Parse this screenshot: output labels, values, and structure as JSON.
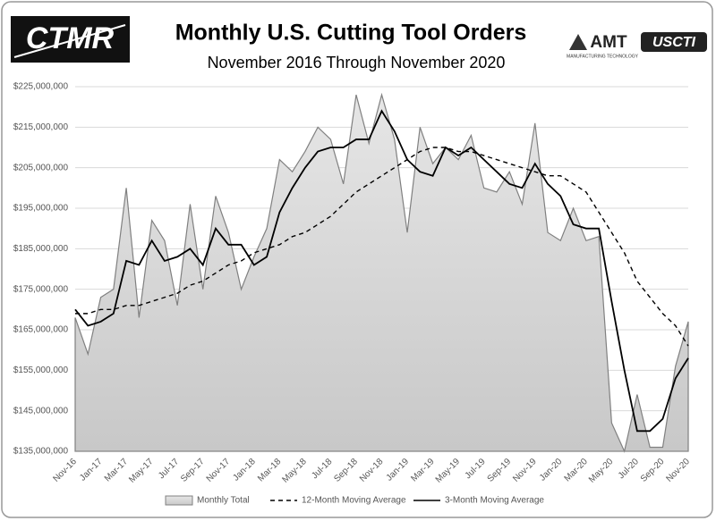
{
  "chart_data": {
    "type": "line",
    "title": "Monthly U.S. Cutting Tool Orders",
    "subtitle": "November 2016 Through November 2020",
    "logos": {
      "left": "CTMR",
      "amt": "AMT",
      "amt_sub": "MANUFACTURING TECHNOLOGY",
      "uscti": "USCTI"
    },
    "categories": [
      "Nov-16",
      null,
      "Jan-17",
      null,
      "Mar-17",
      null,
      "May-17",
      null,
      "Jul-17",
      null,
      "Sep-17",
      null,
      "Nov-17",
      null,
      "Jan-18",
      null,
      "Mar-18",
      null,
      "May-18",
      null,
      "Jul-18",
      null,
      "Sep-18",
      null,
      "Nov-18",
      null,
      "Jan-19",
      null,
      "Mar-19",
      null,
      "May-19",
      null,
      "Jul-19",
      null,
      "Sep-19",
      null,
      "Nov-19",
      null,
      "Jan-20",
      null,
      "Mar-20",
      null,
      "May-20",
      null,
      "Jul-20",
      null,
      "Sep-20",
      null,
      "Nov-20"
    ],
    "series": [
      {
        "name": "Monthly Total",
        "type": "area",
        "color": "#d4d4d4",
        "stroke": "#808080",
        "values": [
          168000000,
          159000000,
          173000000,
          175000000,
          200000000,
          168000000,
          192000000,
          187000000,
          171000000,
          196000000,
          175000000,
          198000000,
          189000000,
          175000000,
          183000000,
          190000000,
          207000000,
          204000000,
          209000000,
          215000000,
          212000000,
          201000000,
          223000000,
          211000000,
          223000000,
          212000000,
          189000000,
          215000000,
          206000000,
          210000000,
          207000000,
          213000000,
          200000000,
          199000000,
          204000000,
          196000000,
          216000000,
          189000000,
          187000000,
          195000000,
          187000000,
          188000000,
          142000000,
          135000000,
          149000000,
          136000000,
          136000000,
          156000000,
          167000000
        ]
      },
      {
        "name": "12-Month Moving Average",
        "type": "line",
        "color": "#000000",
        "dashed": true,
        "values": [
          169000000,
          169000000,
          170000000,
          170000000,
          171000000,
          171000000,
          172000000,
          173000000,
          174000000,
          176000000,
          177000000,
          179000000,
          181000000,
          182000000,
          184000000,
          185000000,
          186000000,
          188000000,
          189000000,
          191000000,
          193000000,
          196000000,
          199000000,
          201000000,
          203000000,
          205000000,
          207000000,
          209000000,
          210000000,
          210000000,
          209000000,
          209000000,
          208000000,
          207000000,
          206000000,
          205000000,
          204000000,
          203000000,
          203000000,
          201000000,
          199000000,
          194000000,
          189000000,
          184000000,
          177000000,
          173000000,
          169000000,
          166000000,
          161000000
        ]
      },
      {
        "name": "3-Month Moving Average",
        "type": "line",
        "color": "#000000",
        "dashed": false,
        "values": [
          170000000,
          166000000,
          167000000,
          169000000,
          182000000,
          181000000,
          187000000,
          182000000,
          183000000,
          185000000,
          181000000,
          190000000,
          186000000,
          186000000,
          181000000,
          183000000,
          194000000,
          200000000,
          205000000,
          209000000,
          210000000,
          210000000,
          212000000,
          212000000,
          219000000,
          214000000,
          207000000,
          204000000,
          203000000,
          210000000,
          208000000,
          210000000,
          207000000,
          204000000,
          201000000,
          200000000,
          206000000,
          201000000,
          198000000,
          191000000,
          190000000,
          190000000,
          172000000,
          155000000,
          140000000,
          140000000,
          143000000,
          153000000,
          158000000
        ]
      }
    ],
    "ylim": [
      135000000,
      225000000
    ],
    "yticks": [
      {
        "value": 135000000,
        "label": "$135,000,000"
      },
      {
        "value": 145000000,
        "label": "$145,000,000"
      },
      {
        "value": 155000000,
        "label": "$155,000,000"
      },
      {
        "value": 165000000,
        "label": "$165,000,000"
      },
      {
        "value": 175000000,
        "label": "$175,000,000"
      },
      {
        "value": 185000000,
        "label": "$185,000,000"
      },
      {
        "value": 195000000,
        "label": "$195,000,000"
      },
      {
        "value": 205000000,
        "label": "$205,000,000"
      },
      {
        "value": 215000000,
        "label": "$215,000,000"
      },
      {
        "value": 225000000,
        "label": "$225,000,000"
      }
    ],
    "grid": true,
    "legend": "bottom"
  }
}
